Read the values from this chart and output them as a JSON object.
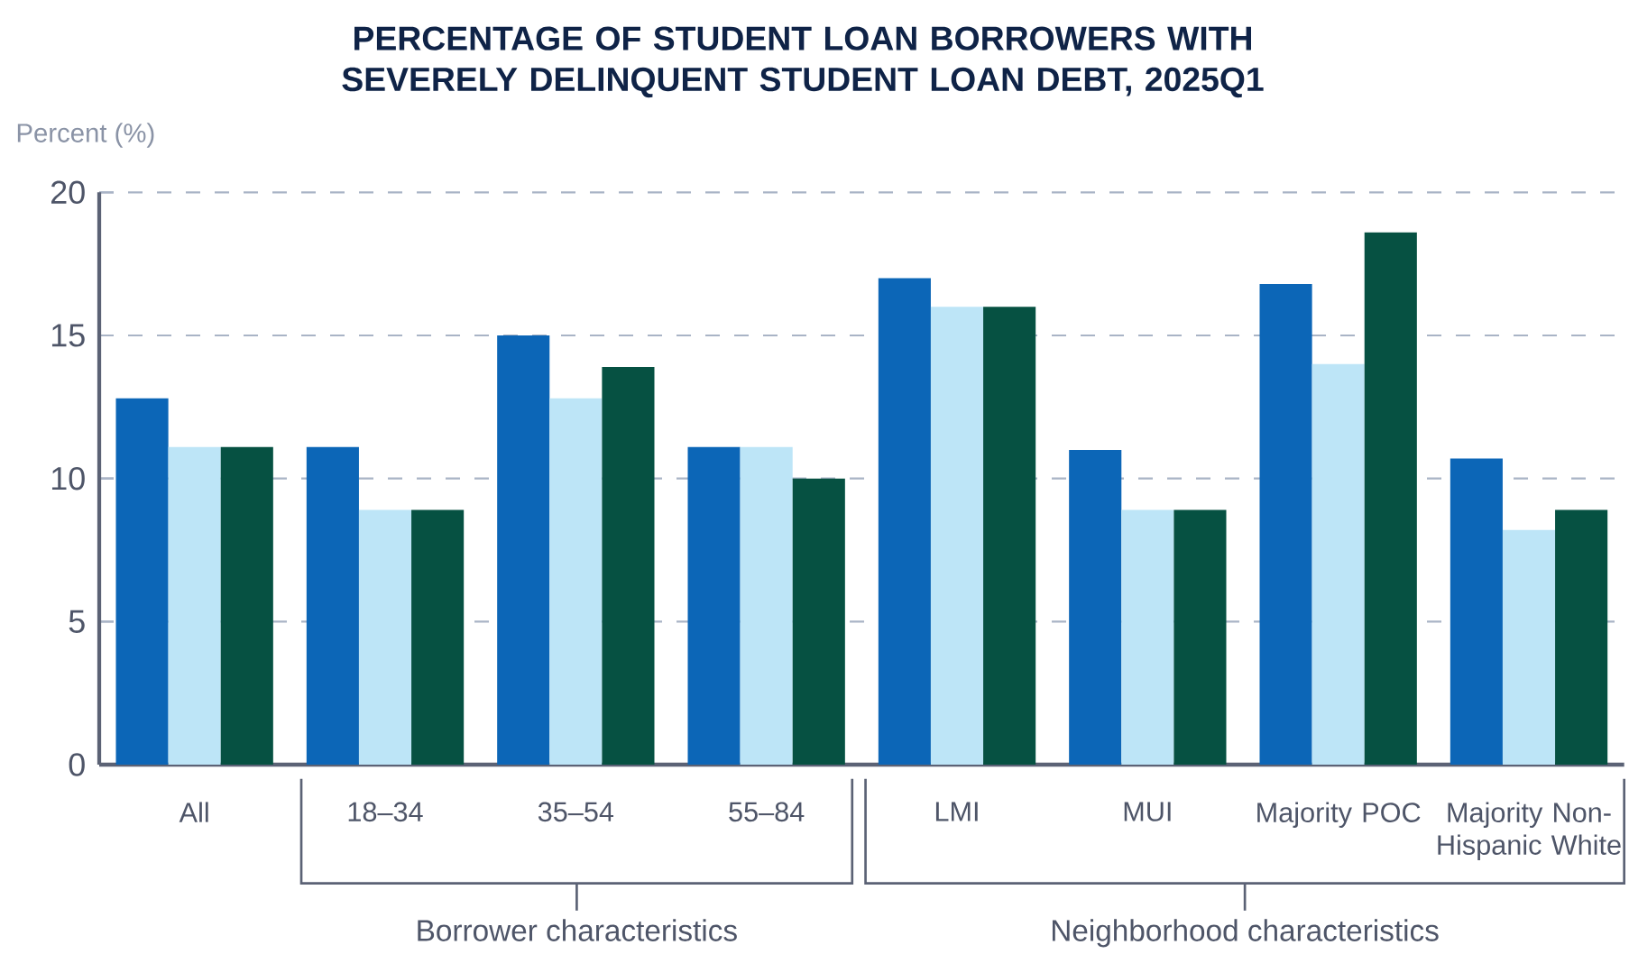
{
  "chart_data": {
    "type": "bar",
    "title": "PERCENTAGE OF STUDENT LOAN BORROWERS WITH SEVERELY DELINQUENT STUDENT LOAN DEBT, 2025Q1",
    "ylabel": "Percent (%)",
    "categories": [
      "All",
      "18–34",
      "35–54",
      "55–84",
      "LMI",
      "MUI",
      "Majority POC",
      "Majority Non-Hispanic White"
    ],
    "series": [
      {
        "color": "#0c66b7",
        "values": [
          12.8,
          11.1,
          15.0,
          11.1,
          17.0,
          11.0,
          16.8,
          10.7
        ]
      },
      {
        "color": "#bde5f7",
        "values": [
          11.1,
          8.9,
          12.8,
          11.1,
          16.0,
          8.9,
          14.0,
          8.2
        ]
      },
      {
        "color": "#065142",
        "values": [
          11.1,
          8.9,
          13.9,
          10.0,
          16.0,
          8.9,
          18.6,
          8.9
        ]
      }
    ],
    "ylim": [
      0,
      20
    ],
    "yticks": [
      0,
      5,
      10,
      15,
      20
    ],
    "grid": "y",
    "annotations": [
      "Borrower characteristics",
      "Neighborhood characteristics"
    ]
  }
}
